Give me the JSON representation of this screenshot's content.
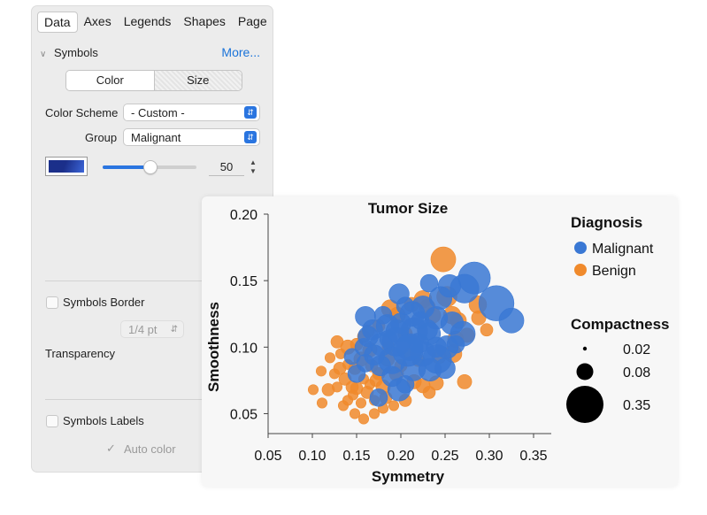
{
  "panel": {
    "tabs": [
      "Data",
      "Axes",
      "Legends",
      "Shapes",
      "Page"
    ],
    "active_tab": "Data",
    "section_title": "Symbols",
    "more_link": "More...",
    "segment": {
      "color_label": "Color",
      "size_label": "Size"
    },
    "color_scheme_label": "Color Scheme",
    "color_scheme_value": "- Custom -",
    "group_label": "Group",
    "group_value": "Malignant",
    "slider_value": "50",
    "slider_fraction": 0.5,
    "symbols_border_label": "Symbols Border",
    "border_weight_value": "1/4 pt",
    "transparency_label": "Transparency",
    "symbols_labels_label": "Symbols Labels",
    "auto_color_label": "Auto color",
    "swatch_colors": [
      "#1b2f8a",
      "#3c66d8"
    ]
  },
  "chart_data": {
    "type": "scatter",
    "title": "Tumor Size",
    "xlabel": "Symmetry",
    "ylabel": "Smoothness",
    "xlim": [
      0.05,
      0.37
    ],
    "ylim": [
      0.035,
      0.2
    ],
    "xticks": [
      "0.05",
      "0.10",
      "0.15",
      "0.20",
      "0.25",
      "0.30",
      "0.35"
    ],
    "xtick_values": [
      0.05,
      0.1,
      0.15,
      0.2,
      0.25,
      0.3,
      0.35
    ],
    "yticks": [
      "0.05",
      "0.10",
      "0.15",
      "0.20"
    ],
    "ytick_values": [
      0.05,
      0.1,
      0.15,
      0.2
    ],
    "legend_title": "Diagnosis",
    "size_legend_title": "Compactness",
    "size_legend": [
      {
        "label": "0.02",
        "value": 0.02
      },
      {
        "label": "0.08",
        "value": 0.08
      },
      {
        "label": "0.35",
        "value": 0.35
      }
    ],
    "series": [
      {
        "name": "Malignant",
        "color": "#3a78d4",
        "points": [
          [
            0.283,
            0.152,
            0.2
          ],
          [
            0.308,
            0.133,
            0.24
          ],
          [
            0.325,
            0.12,
            0.12
          ],
          [
            0.272,
            0.144,
            0.16
          ],
          [
            0.255,
            0.146,
            0.1
          ],
          [
            0.245,
            0.137,
            0.1
          ],
          [
            0.232,
            0.148,
            0.06
          ],
          [
            0.198,
            0.14,
            0.08
          ],
          [
            0.225,
            0.13,
            0.1
          ],
          [
            0.213,
            0.125,
            0.12
          ],
          [
            0.24,
            0.122,
            0.1
          ],
          [
            0.258,
            0.118,
            0.1
          ],
          [
            0.27,
            0.11,
            0.12
          ],
          [
            0.232,
            0.11,
            0.1
          ],
          [
            0.215,
            0.112,
            0.14
          ],
          [
            0.2,
            0.118,
            0.08
          ],
          [
            0.185,
            0.116,
            0.1
          ],
          [
            0.168,
            0.113,
            0.08
          ],
          [
            0.16,
            0.123,
            0.08
          ],
          [
            0.195,
            0.104,
            0.16
          ],
          [
            0.178,
            0.102,
            0.1
          ],
          [
            0.208,
            0.097,
            0.18
          ],
          [
            0.225,
            0.095,
            0.12
          ],
          [
            0.241,
            0.091,
            0.16
          ],
          [
            0.252,
            0.1,
            0.1
          ],
          [
            0.19,
            0.09,
            0.14
          ],
          [
            0.17,
            0.094,
            0.08
          ],
          [
            0.158,
            0.1,
            0.06
          ],
          [
            0.214,
            0.084,
            0.12
          ],
          [
            0.233,
            0.083,
            0.1
          ],
          [
            0.19,
            0.078,
            0.08
          ],
          [
            0.198,
            0.068,
            0.1
          ],
          [
            0.175,
            0.062,
            0.06
          ],
          [
            0.15,
            0.08,
            0.06
          ],
          [
            0.163,
            0.108,
            0.08
          ],
          [
            0.145,
            0.093,
            0.05
          ],
          [
            0.205,
            0.072,
            0.06
          ],
          [
            0.24,
            0.1,
            0.08
          ],
          [
            0.262,
            0.102,
            0.06
          ],
          [
            0.222,
            0.12,
            0.06
          ],
          [
            0.18,
            0.124,
            0.06
          ],
          [
            0.205,
            0.131,
            0.06
          ],
          [
            0.186,
            0.106,
            0.06
          ],
          [
            0.16,
            0.088,
            0.06
          ],
          [
            0.22,
            0.103,
            0.08
          ],
          [
            0.25,
            0.084,
            0.08
          ],
          [
            0.196,
            0.112,
            0.1
          ],
          [
            0.21,
            0.1,
            0.14
          ],
          [
            0.177,
            0.086,
            0.08
          ],
          [
            0.23,
            0.113,
            0.08
          ]
        ]
      },
      {
        "name": "Benign",
        "color": "#f08a2c",
        "points": [
          [
            0.248,
            0.166,
            0.12
          ],
          [
            0.252,
            0.138,
            0.08
          ],
          [
            0.258,
            0.124,
            0.06
          ],
          [
            0.287,
            0.132,
            0.06
          ],
          [
            0.275,
            0.109,
            0.04
          ],
          [
            0.265,
            0.12,
            0.05
          ],
          [
            0.236,
            0.124,
            0.05
          ],
          [
            0.225,
            0.136,
            0.06
          ],
          [
            0.188,
            0.129,
            0.06
          ],
          [
            0.196,
            0.124,
            0.05
          ],
          [
            0.272,
            0.074,
            0.04
          ],
          [
            0.24,
            0.073,
            0.04
          ],
          [
            0.259,
            0.095,
            0.06
          ],
          [
            0.163,
            0.112,
            0.03
          ],
          [
            0.128,
            0.104,
            0.03
          ],
          [
            0.131,
            0.084,
            0.03
          ],
          [
            0.118,
            0.068,
            0.03
          ],
          [
            0.101,
            0.068,
            0.02
          ],
          [
            0.11,
            0.082,
            0.02
          ],
          [
            0.14,
            0.06,
            0.02
          ],
          [
            0.145,
            0.07,
            0.03
          ],
          [
            0.155,
            0.058,
            0.02
          ],
          [
            0.158,
            0.046,
            0.02
          ],
          [
            0.17,
            0.05,
            0.02
          ],
          [
            0.183,
            0.062,
            0.03
          ],
          [
            0.137,
            0.076,
            0.03
          ],
          [
            0.148,
            0.084,
            0.03
          ],
          [
            0.155,
            0.091,
            0.04
          ],
          [
            0.165,
            0.098,
            0.04
          ],
          [
            0.172,
            0.075,
            0.03
          ],
          [
            0.18,
            0.07,
            0.04
          ],
          [
            0.12,
            0.092,
            0.02
          ],
          [
            0.14,
            0.1,
            0.04
          ],
          [
            0.15,
            0.069,
            0.03
          ],
          [
            0.162,
            0.066,
            0.03
          ],
          [
            0.175,
            0.08,
            0.03
          ],
          [
            0.185,
            0.091,
            0.04
          ],
          [
            0.195,
            0.08,
            0.04
          ],
          [
            0.205,
            0.06,
            0.03
          ],
          [
            0.215,
            0.074,
            0.04
          ],
          [
            0.225,
            0.071,
            0.04
          ],
          [
            0.232,
            0.066,
            0.03
          ],
          [
            0.243,
            0.093,
            0.04
          ],
          [
            0.288,
            0.122,
            0.04
          ],
          [
            0.297,
            0.113,
            0.03
          ],
          [
            0.262,
            0.106,
            0.05
          ],
          [
            0.212,
            0.132,
            0.04
          ],
          [
            0.23,
            0.13,
            0.05
          ],
          [
            0.205,
            0.11,
            0.04
          ],
          [
            0.167,
            0.086,
            0.03
          ],
          [
            0.128,
            0.07,
            0.02
          ],
          [
            0.135,
            0.056,
            0.02
          ],
          [
            0.111,
            0.058,
            0.02
          ],
          [
            0.148,
            0.05,
            0.02
          ],
          [
            0.192,
            0.056,
            0.02
          ],
          [
            0.2,
            0.086,
            0.03
          ],
          [
            0.22,
            0.09,
            0.03
          ],
          [
            0.158,
            0.076,
            0.02
          ],
          [
            0.17,
            0.06,
            0.02
          ],
          [
            0.186,
            0.1,
            0.03
          ],
          [
            0.132,
            0.095,
            0.02
          ],
          [
            0.146,
            0.064,
            0.02
          ],
          [
            0.158,
            0.108,
            0.03
          ],
          [
            0.175,
            0.116,
            0.03
          ],
          [
            0.21,
            0.095,
            0.03
          ],
          [
            0.125,
            0.08,
            0.02
          ],
          [
            0.15,
            0.102,
            0.03
          ],
          [
            0.165,
            0.072,
            0.02
          ],
          [
            0.18,
            0.054,
            0.02
          ],
          [
            0.14,
            0.087,
            0.02
          ]
        ]
      }
    ]
  }
}
